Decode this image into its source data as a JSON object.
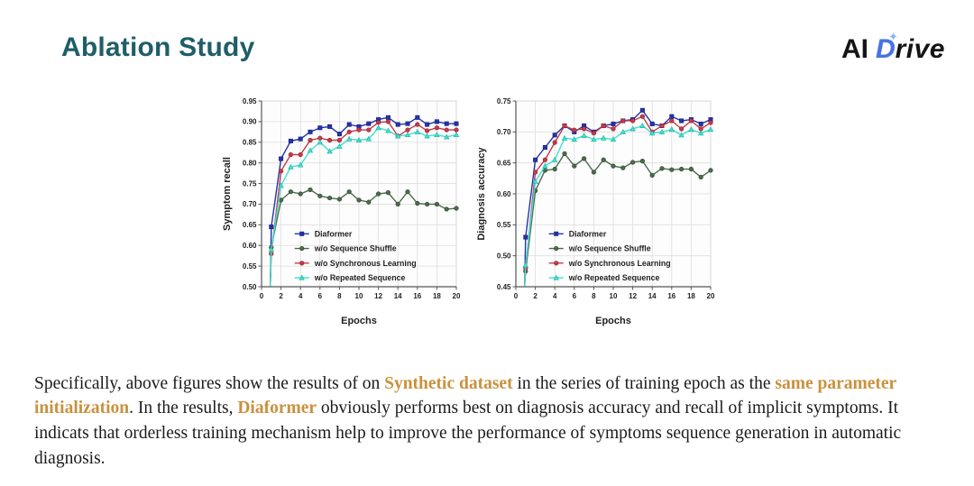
{
  "slide": {
    "title": "Ablation Study",
    "logo": {
      "prefix": "AI",
      "d": "D",
      "suffix": "rive"
    }
  },
  "theme": {
    "title_color": "#1f5e69",
    "logo_accent_color": "#4a72e0",
    "highlight_color": "#c9913e"
  },
  "paragraph": {
    "segments": [
      {
        "text": "Specifically, above figures show the results of on ",
        "highlight": false
      },
      {
        "text": "Synthetic dataset",
        "highlight": true
      },
      {
        "text": " in the series of training epoch as the ",
        "highlight": false
      },
      {
        "text": "same parameter initialization",
        "highlight": true
      },
      {
        "text": ". In the results, ",
        "highlight": false
      },
      {
        "text": "Diaformer",
        "highlight": true
      },
      {
        "text": " obviously performs best on diagnosis accuracy and recall of implicit symptoms. It indicats that orderless training mechanism help to improve the performance of symptoms sequence generation in automatic diagnosis.",
        "highlight": false
      }
    ]
  },
  "chart_data": [
    {
      "type": "line",
      "title": "",
      "xlabel": "Epochs",
      "ylabel": "Symptom recall",
      "xlim": [
        0,
        20
      ],
      "ylim": [
        0.5,
        0.95
      ],
      "xticks": [
        0,
        2,
        4,
        6,
        8,
        10,
        12,
        14,
        16,
        18,
        20
      ],
      "ytick_step": 0.05,
      "grid": true,
      "legend_position": "inside lower-left",
      "x": [
        1,
        2,
        3,
        4,
        5,
        6,
        7,
        8,
        9,
        10,
        11,
        12,
        13,
        14,
        15,
        16,
        17,
        18,
        19,
        20
      ],
      "series": [
        {
          "name": "Diaformer",
          "color": "#2433b0",
          "edge": "#161f6e",
          "marker": "square",
          "values": [
            0.645,
            0.81,
            0.853,
            0.858,
            0.875,
            0.885,
            0.888,
            0.87,
            0.893,
            0.888,
            0.895,
            0.905,
            0.91,
            0.893,
            0.895,
            0.91,
            0.893,
            0.9,
            0.895,
            0.895
          ]
        },
        {
          "name": "w/o Sequence Shuffle",
          "color": "#4d6a4d",
          "edge": "#2e452e",
          "marker": "circle",
          "values": [
            0.595,
            0.71,
            0.73,
            0.725,
            0.735,
            0.72,
            0.715,
            0.712,
            0.73,
            0.71,
            0.705,
            0.725,
            0.728,
            0.7,
            0.73,
            0.702,
            0.7,
            0.7,
            0.688,
            0.69
          ]
        },
        {
          "name": "w/o Synchronous Learning",
          "color": "#c43b4a",
          "edge": "#8c212d",
          "marker": "circle",
          "values": [
            0.58,
            0.78,
            0.82,
            0.82,
            0.855,
            0.86,
            0.855,
            0.855,
            0.875,
            0.88,
            0.88,
            0.898,
            0.9,
            0.865,
            0.88,
            0.893,
            0.878,
            0.885,
            0.88,
            0.88
          ]
        },
        {
          "name": "w/o Repeated Sequence",
          "color": "#3fe0d0",
          "edge": "#25b2a4",
          "marker": "triangle",
          "values": [
            0.59,
            0.745,
            0.79,
            0.795,
            0.83,
            0.85,
            0.828,
            0.84,
            0.858,
            0.855,
            0.858,
            0.885,
            0.878,
            0.865,
            0.868,
            0.875,
            0.865,
            0.868,
            0.863,
            0.868
          ]
        }
      ]
    },
    {
      "type": "line",
      "title": "",
      "xlabel": "Epochs",
      "ylabel": "Diagnosis accuracy",
      "xlim": [
        0,
        20
      ],
      "ylim": [
        0.45,
        0.75
      ],
      "xticks": [
        0,
        2,
        4,
        6,
        8,
        10,
        12,
        14,
        16,
        18,
        20
      ],
      "ytick_step": 0.05,
      "grid": true,
      "legend_position": "inside lower-left",
      "x": [
        1,
        2,
        3,
        4,
        5,
        6,
        7,
        8,
        9,
        10,
        11,
        12,
        13,
        14,
        15,
        16,
        17,
        18,
        19,
        20
      ],
      "series": [
        {
          "name": "Diaformer",
          "color": "#2433b0",
          "edge": "#161f6e",
          "marker": "square",
          "values": [
            0.53,
            0.655,
            0.675,
            0.695,
            0.71,
            0.7,
            0.71,
            0.7,
            0.71,
            0.713,
            0.718,
            0.72,
            0.735,
            0.713,
            0.71,
            0.725,
            0.718,
            0.72,
            0.713,
            0.72
          ]
        },
        {
          "name": "w/o Sequence Shuffle",
          "color": "#4d6a4d",
          "edge": "#2e452e",
          "marker": "circle",
          "values": [
            0.475,
            0.605,
            0.638,
            0.64,
            0.665,
            0.645,
            0.657,
            0.635,
            0.655,
            0.645,
            0.642,
            0.651,
            0.653,
            0.63,
            0.641,
            0.639,
            0.64,
            0.64,
            0.627,
            0.638
          ]
        },
        {
          "name": "w/o Synchronous Learning",
          "color": "#c43b4a",
          "edge": "#8c212d",
          "marker": "circle",
          "values": [
            0.48,
            0.635,
            0.655,
            0.683,
            0.71,
            0.703,
            0.705,
            0.698,
            0.71,
            0.705,
            0.718,
            0.718,
            0.725,
            0.7,
            0.71,
            0.718,
            0.705,
            0.718,
            0.705,
            0.715
          ]
        },
        {
          "name": "w/o Repeated Sequence",
          "color": "#3fe0d0",
          "edge": "#25b2a4",
          "marker": "triangle",
          "values": [
            0.485,
            0.62,
            0.645,
            0.655,
            0.69,
            0.688,
            0.694,
            0.688,
            0.69,
            0.688,
            0.7,
            0.705,
            0.71,
            0.698,
            0.7,
            0.704,
            0.695,
            0.704,
            0.698,
            0.704
          ]
        }
      ]
    }
  ]
}
